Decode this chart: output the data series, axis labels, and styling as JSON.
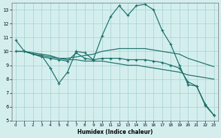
{
  "xlabel": "Humidex (Indice chaleur)",
  "bg_color": "#d4eeee",
  "grid_color": "#aad4d4",
  "line_color": "#1a7068",
  "xlim": [
    -0.5,
    23.5
  ],
  "ylim": [
    5,
    13.5
  ],
  "yticks": [
    5,
    6,
    7,
    8,
    9,
    10,
    11,
    12,
    13
  ],
  "xticks": [
    0,
    1,
    2,
    3,
    4,
    5,
    6,
    7,
    8,
    9,
    10,
    11,
    12,
    13,
    14,
    15,
    16,
    17,
    18,
    19,
    20,
    21,
    22,
    23
  ],
  "curve1_x": [
    0,
    1,
    2,
    3,
    4,
    5,
    6,
    7,
    8,
    9,
    10,
    11,
    12,
    13,
    14,
    15,
    16,
    17,
    18,
    19,
    20,
    21,
    22,
    23
  ],
  "curve1_y": [
    10.8,
    10.0,
    9.8,
    9.7,
    8.8,
    7.7,
    8.5,
    10.0,
    9.9,
    9.4,
    11.1,
    12.5,
    13.3,
    12.6,
    13.3,
    13.4,
    13.0,
    11.5,
    10.5,
    9.0,
    7.6,
    7.5,
    6.1,
    5.4
  ],
  "curve2_x": [
    0,
    1,
    2,
    3,
    4,
    5,
    6,
    7,
    8,
    9,
    10,
    11,
    12,
    13,
    14,
    15,
    16,
    17,
    18,
    19,
    20,
    21,
    22,
    23
  ],
  "curve2_y": [
    10.0,
    10.0,
    9.8,
    9.7,
    9.6,
    9.5,
    9.5,
    9.6,
    9.7,
    9.8,
    10.0,
    10.1,
    10.2,
    10.2,
    10.2,
    10.2,
    10.1,
    10.0,
    9.9,
    9.8,
    9.5,
    9.3,
    9.1,
    8.9
  ],
  "curve3_x": [
    0,
    1,
    2,
    3,
    4,
    5,
    6,
    7,
    8,
    9,
    10,
    11,
    12,
    13,
    14,
    15,
    16,
    17,
    18,
    19,
    20,
    21,
    22,
    23
  ],
  "curve3_y": [
    10.0,
    10.0,
    9.8,
    9.6,
    9.5,
    9.4,
    9.3,
    9.9,
    9.5,
    9.4,
    9.5,
    9.5,
    9.5,
    9.4,
    9.4,
    9.4,
    9.3,
    9.2,
    9.0,
    8.8,
    7.8,
    7.5,
    6.2,
    5.4
  ],
  "curve4_x": [
    0,
    1,
    2,
    3,
    4,
    5,
    6,
    7,
    8,
    9,
    10,
    11,
    12,
    13,
    14,
    15,
    16,
    17,
    18,
    19,
    20,
    21,
    22,
    23
  ],
  "curve4_y": [
    10.0,
    10.0,
    9.9,
    9.8,
    9.7,
    9.5,
    9.4,
    9.4,
    9.3,
    9.3,
    9.3,
    9.2,
    9.1,
    9.0,
    9.0,
    8.9,
    8.8,
    8.7,
    8.6,
    8.5,
    8.3,
    8.2,
    8.1,
    8.0
  ]
}
